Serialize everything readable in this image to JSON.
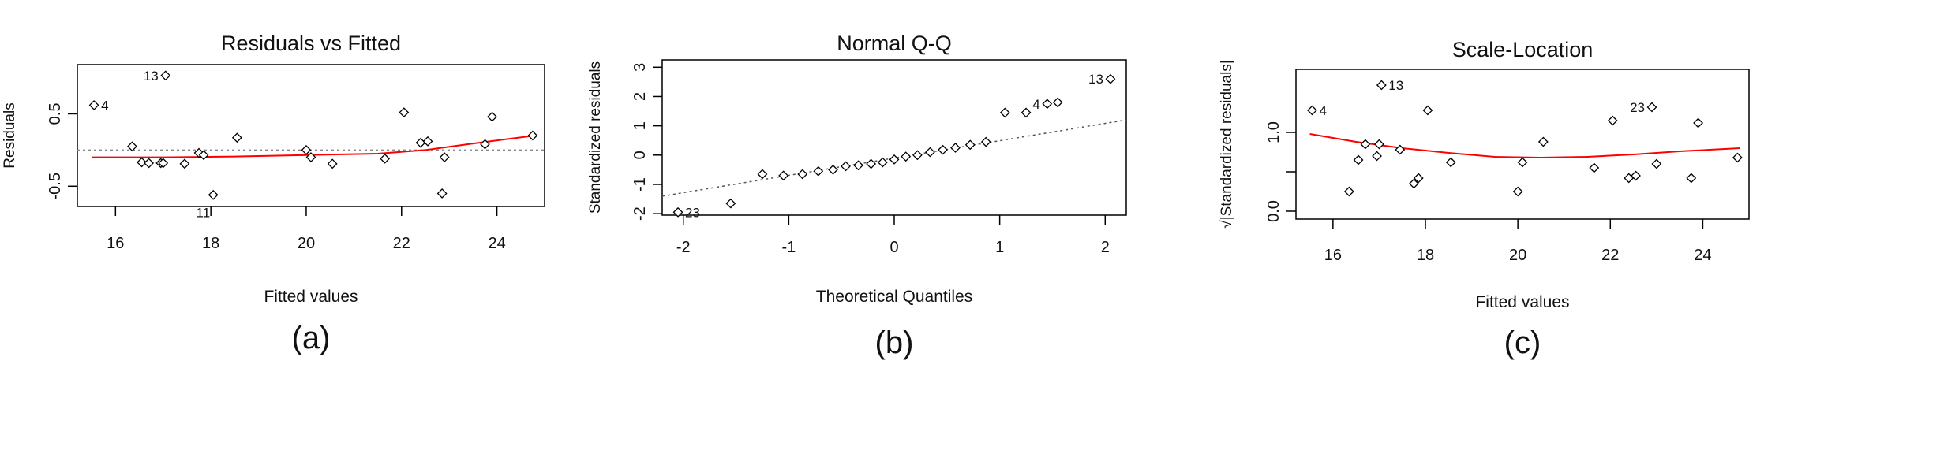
{
  "colors": {
    "points": "#000000",
    "smooth": "#ff0000",
    "reference": "#888888"
  },
  "chart_data": [
    {
      "type": "scatter",
      "title": "Residuals vs Fitted",
      "xlabel": "Fitted values",
      "ylabel": "Residuals",
      "caption": "(a)",
      "xlim": [
        15.2,
        25.0
      ],
      "ylim": [
        -0.78,
        1.18
      ],
      "xticks": [
        16,
        18,
        20,
        22,
        24
      ],
      "yticks": [
        -0.5,
        0.5
      ],
      "reference_line": 0,
      "points": [
        [
          15.55,
          0.62
        ],
        [
          16.35,
          0.05
        ],
        [
          16.55,
          -0.17
        ],
        [
          16.7,
          -0.18
        ],
        [
          16.95,
          -0.18
        ],
        [
          17.0,
          -0.18
        ],
        [
          17.45,
          -0.19
        ],
        [
          17.75,
          -0.04
        ],
        [
          17.85,
          -0.07
        ],
        [
          18.05,
          -0.62
        ],
        [
          18.55,
          0.17
        ],
        [
          20.0,
          0.0
        ],
        [
          20.1,
          -0.1
        ],
        [
          20.55,
          -0.19
        ],
        [
          21.65,
          -0.12
        ],
        [
          22.05,
          0.52
        ],
        [
          22.4,
          0.1
        ],
        [
          22.55,
          0.12
        ],
        [
          22.85,
          -0.6
        ],
        [
          22.9,
          -0.1
        ],
        [
          23.75,
          0.08
        ],
        [
          23.9,
          0.46
        ],
        [
          24.75,
          0.2
        ],
        [
          17.05,
          1.03
        ]
      ],
      "point_labels": [
        {
          "text": "4",
          "x": 15.55,
          "y": 0.62,
          "side": "right"
        },
        {
          "text": "13",
          "x": 17.05,
          "y": 1.03,
          "side": "left"
        },
        {
          "text": "11",
          "x": 18.05,
          "y": -0.62,
          "side": "below-left"
        }
      ],
      "smooth": [
        [
          15.5,
          -0.1
        ],
        [
          17.0,
          -0.1
        ],
        [
          18.5,
          -0.09
        ],
        [
          20.0,
          -0.07
        ],
        [
          21.5,
          -0.05
        ],
        [
          22.5,
          0.0
        ],
        [
          23.5,
          0.09
        ],
        [
          24.8,
          0.2
        ]
      ]
    },
    {
      "type": "scatter",
      "title": "Normal Q-Q",
      "xlabel": "Theoretical Quantiles",
      "ylabel": "Standardized residuals",
      "caption": "(b)",
      "xlim": [
        -2.2,
        2.2
      ],
      "ylim": [
        -2.05,
        3.25
      ],
      "xticks": [
        -2,
        -1,
        0,
        1,
        2
      ],
      "yticks": [
        -2,
        -1,
        0,
        1,
        2,
        3
      ],
      "reference_line": [
        [
          -2.2,
          -1.4
        ],
        [
          2.2,
          1.2
        ]
      ],
      "points": [
        [
          -2.05,
          -1.95
        ],
        [
          -1.55,
          -1.65
        ],
        [
          -1.25,
          -0.65
        ],
        [
          -1.05,
          -0.7
        ],
        [
          -0.87,
          -0.65
        ],
        [
          -0.72,
          -0.55
        ],
        [
          -0.58,
          -0.5
        ],
        [
          -0.46,
          -0.38
        ],
        [
          -0.34,
          -0.35
        ],
        [
          -0.22,
          -0.3
        ],
        [
          -0.11,
          -0.25
        ],
        [
          0.0,
          -0.15
        ],
        [
          0.11,
          -0.05
        ],
        [
          0.22,
          0.0
        ],
        [
          0.34,
          0.1
        ],
        [
          0.46,
          0.18
        ],
        [
          0.58,
          0.25
        ],
        [
          0.72,
          0.35
        ],
        [
          0.87,
          0.45
        ],
        [
          1.05,
          1.45
        ],
        [
          1.25,
          1.45
        ],
        [
          1.45,
          1.75
        ],
        [
          1.55,
          1.8
        ],
        [
          2.05,
          2.6
        ]
      ],
      "point_labels": [
        {
          "text": "23",
          "x": -2.05,
          "y": -1.95,
          "side": "right"
        },
        {
          "text": "4",
          "x": 1.45,
          "y": 1.75,
          "side": "left"
        },
        {
          "text": "13",
          "x": 2.05,
          "y": 2.6,
          "side": "left"
        }
      ]
    },
    {
      "type": "scatter",
      "title": "Scale-Location",
      "xlabel": "Fitted values",
      "ylabel": "√|Standardized residuals|",
      "caption": "(c)",
      "xlim": [
        15.2,
        25.0
      ],
      "ylim": [
        -0.1,
        1.8
      ],
      "xticks": [
        16,
        18,
        20,
        22,
        24
      ],
      "yticks": [
        0.0,
        0.5,
        1.0
      ],
      "ytick_labels": [
        "0.0",
        "",
        "1.0"
      ],
      "points": [
        [
          15.55,
          1.28
        ],
        [
          16.35,
          0.25
        ],
        [
          16.55,
          0.65
        ],
        [
          16.7,
          0.85
        ],
        [
          16.95,
          0.7
        ],
        [
          17.0,
          0.85
        ],
        [
          17.45,
          0.78
        ],
        [
          17.75,
          0.35
        ],
        [
          17.85,
          0.42
        ],
        [
          18.05,
          1.28
        ],
        [
          18.55,
          0.62
        ],
        [
          20.0,
          0.25
        ],
        [
          20.1,
          0.62
        ],
        [
          20.55,
          0.88
        ],
        [
          21.65,
          0.55
        ],
        [
          22.05,
          1.15
        ],
        [
          22.4,
          0.42
        ],
        [
          22.55,
          0.45
        ],
        [
          22.9,
          1.32
        ],
        [
          23.0,
          0.6
        ],
        [
          23.75,
          0.42
        ],
        [
          23.9,
          1.12
        ],
        [
          24.75,
          0.68
        ],
        [
          17.05,
          1.6
        ]
      ],
      "point_labels": [
        {
          "text": "4",
          "x": 15.55,
          "y": 1.28,
          "side": "right"
        },
        {
          "text": "13",
          "x": 17.05,
          "y": 1.6,
          "side": "right"
        },
        {
          "text": "23",
          "x": 22.9,
          "y": 1.32,
          "side": "left"
        }
      ],
      "smooth": [
        [
          15.5,
          0.98
        ],
        [
          16.5,
          0.88
        ],
        [
          17.5,
          0.8
        ],
        [
          18.5,
          0.74
        ],
        [
          19.5,
          0.69
        ],
        [
          20.5,
          0.68
        ],
        [
          21.5,
          0.69
        ],
        [
          22.5,
          0.72
        ],
        [
          23.5,
          0.76
        ],
        [
          24.8,
          0.8
        ]
      ]
    }
  ]
}
